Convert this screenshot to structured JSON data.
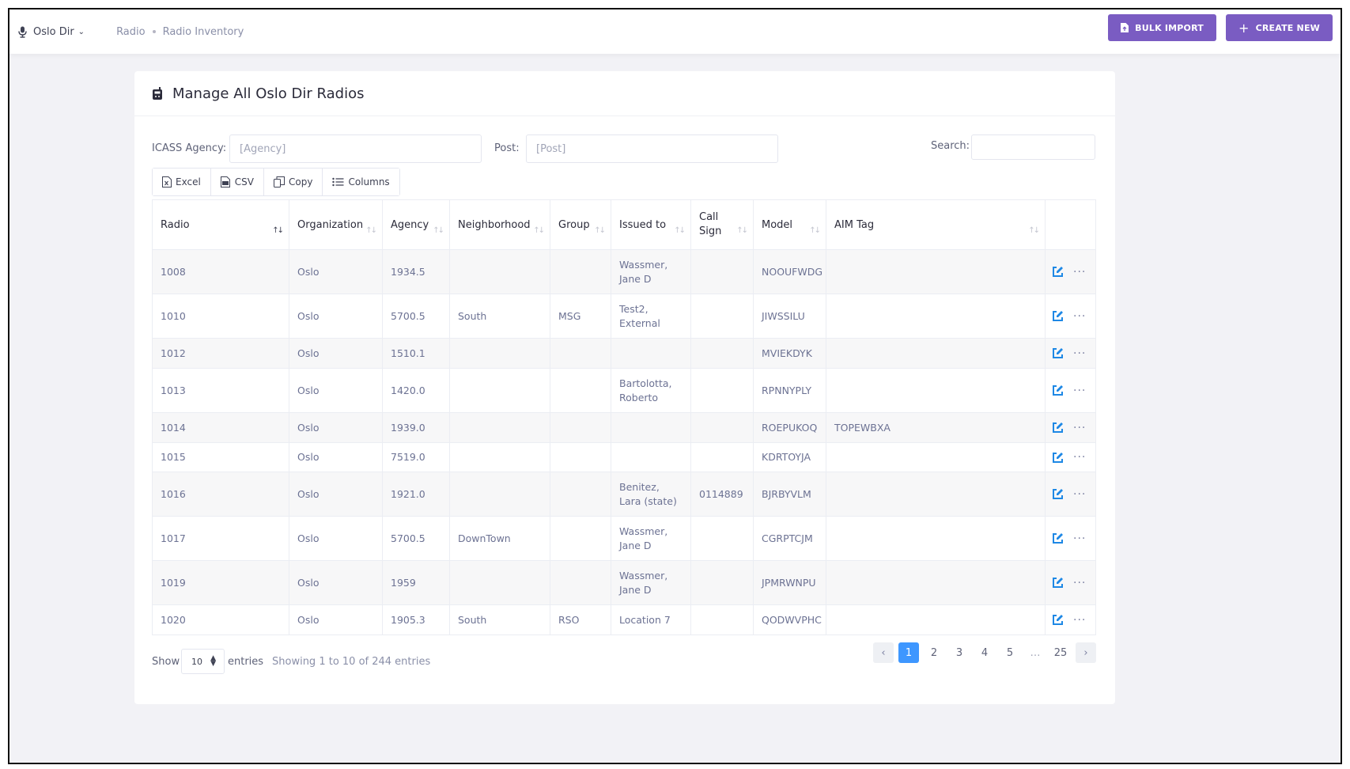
{
  "site": {
    "name": "Oslo Dir"
  },
  "breadcrumb": [
    "Radio",
    "Radio Inventory"
  ],
  "actions": {
    "bulk_import": "BULK IMPORT",
    "create_new": "CREATE NEW"
  },
  "card": {
    "title": "Manage All Oslo Dir Radios"
  },
  "filters": {
    "agency_label": "ICASS Agency:",
    "agency_placeholder": "[Agency]",
    "post_label": "Post:",
    "post_placeholder": "[Post]",
    "search_label": "Search:",
    "search_value": ""
  },
  "export_buttons": [
    "Excel",
    "CSV",
    "Copy",
    "Columns"
  ],
  "table": {
    "columns": [
      "Radio",
      "Organization",
      "Agency",
      "Neighborhood",
      "Group",
      "Issued to",
      "Call Sign",
      "Model",
      "AIM Tag"
    ],
    "rows": [
      [
        "1008",
        "Oslo",
        "1934.5",
        "",
        "",
        "Wassmer, Jane D",
        "",
        "NOOUFWDG",
        ""
      ],
      [
        "1010",
        "Oslo",
        "5700.5",
        "South",
        "MSG",
        "Test2, External",
        "",
        "JIWSSILU",
        ""
      ],
      [
        "1012",
        "Oslo",
        "1510.1",
        "",
        "",
        "",
        "",
        "MVIEKDYK",
        ""
      ],
      [
        "1013",
        "Oslo",
        "1420.0",
        "",
        "",
        "Bartolotta, Roberto",
        "",
        "RPNNYPLY",
        ""
      ],
      [
        "1014",
        "Oslo",
        "1939.0",
        "",
        "",
        "",
        "",
        "ROEPUKOQ",
        "TOPEWBXA"
      ],
      [
        "1015",
        "Oslo",
        "7519.0",
        "",
        "",
        "",
        "",
        "KDRTOYJA",
        ""
      ],
      [
        "1016",
        "Oslo",
        "1921.0",
        "",
        "",
        "Benitez, Lara (state)",
        "0114889",
        "BJRBYVLM",
        ""
      ],
      [
        "1017",
        "Oslo",
        "5700.5",
        "DownTown",
        "",
        "Wassmer, Jane D",
        "",
        "CGRPTCJM",
        ""
      ],
      [
        "1019",
        "Oslo",
        "1959",
        "",
        "",
        "Wassmer, Jane D",
        "",
        "JPMRWNPU",
        ""
      ],
      [
        "1020",
        "Oslo",
        "1905.3",
        "South",
        "RSO",
        "Location 7",
        "",
        "QODWVPHC",
        ""
      ]
    ]
  },
  "footer": {
    "show_label": "Show",
    "page_length": "10",
    "entries_label": "entries",
    "info": "Showing 1 to 10 of 244 entries"
  },
  "pagination": {
    "pages": [
      "1",
      "2",
      "3",
      "4",
      "5",
      "…",
      "25"
    ],
    "current": "1",
    "prev": "‹",
    "next": "›"
  },
  "colors": {
    "accent": "#7a5cc2",
    "active_page": "#3e97ff",
    "edit_icon": "#1e88e5"
  }
}
